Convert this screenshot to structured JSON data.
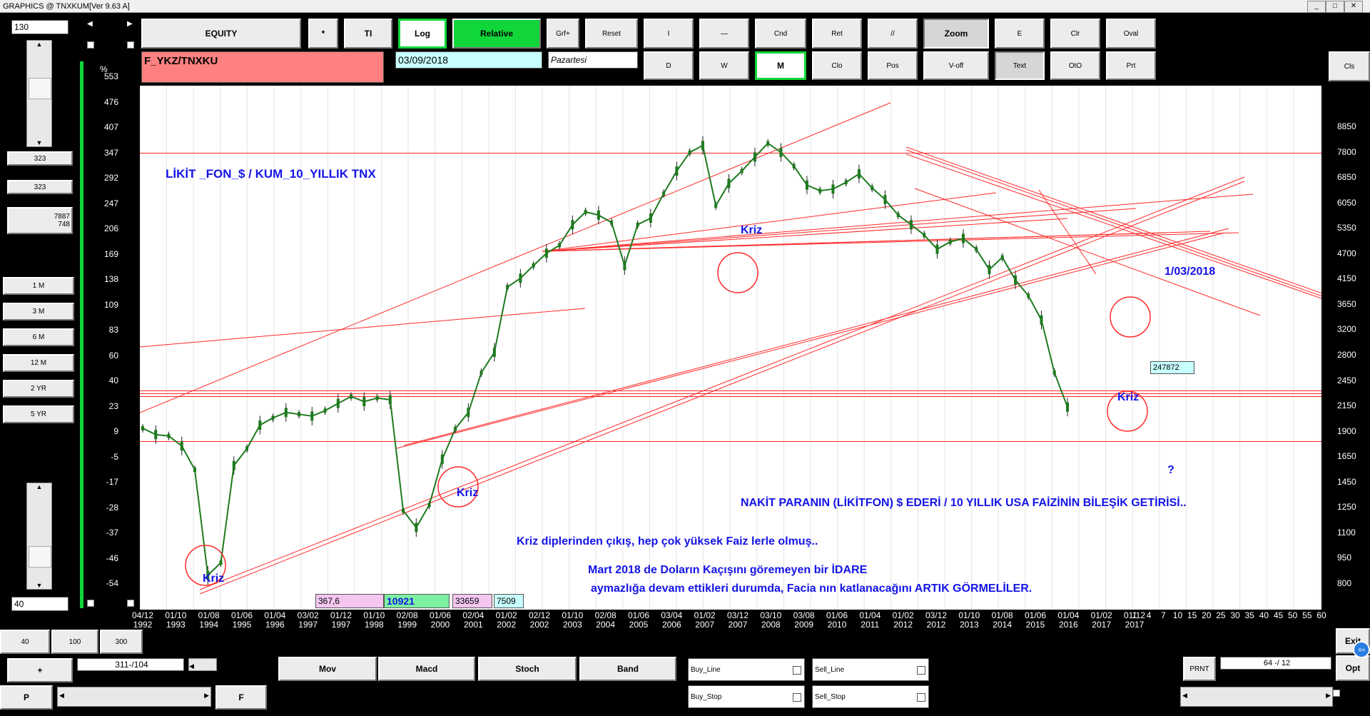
{
  "window": {
    "title": "GRAPHICS  @ TNXKUM[Ver 9.63 A]"
  },
  "toolbar_row1": [
    "EQUITY",
    "*",
    "TI",
    "Log",
    "Relative",
    "Grf+",
    "Reset",
    "I",
    "—",
    "Cnd",
    "Ret",
    "//",
    "Zoom",
    "E",
    "Clr",
    "Oval"
  ],
  "toolbar_row2": [
    "D",
    "W",
    "M",
    "Clo",
    "Pos",
    "V-off",
    "Text",
    "OtO",
    "Prt"
  ],
  "cls_label": "Cls",
  "symbol": "F_YKZ/TNXKU",
  "date": "03/09/2018",
  "day": "Pazartesi",
  "left": {
    "top_value": "130",
    "val1": "323",
    "val2": "323",
    "val3a": "7887",
    "val3b": "748",
    "periods": [
      "1 M",
      "3 M",
      "6 M",
      "12 M",
      "2 YR",
      "5 YR"
    ],
    "bottom_value": "40"
  },
  "chart_data": {
    "type": "line",
    "y_left_label": "%",
    "y_left_ticks": [
      "553",
      "476",
      "407",
      "347",
      "292",
      "247",
      "206",
      "169",
      "138",
      "109",
      "83",
      "60",
      "40",
      "23",
      "9",
      "-5",
      "-17",
      "-28",
      "-37",
      "-46",
      "-54"
    ],
    "y_right_ticks": [
      "8850",
      "7800",
      "6850",
      "6050",
      "5350",
      "4700",
      "4150",
      "3650",
      "3200",
      "2800",
      "2450",
      "2150",
      "1900",
      "1650",
      "1450",
      "1250",
      "1100",
      "950",
      "800"
    ],
    "x_ticks": [
      [
        "04/12",
        "1992"
      ],
      [
        "01/10",
        "1993"
      ],
      [
        "01/08",
        "1994"
      ],
      [
        "01/06",
        "1995"
      ],
      [
        "01/04",
        "1996"
      ],
      [
        "03/02",
        "1997"
      ],
      [
        "01/12",
        "1997"
      ],
      [
        "01/10",
        "1998"
      ],
      [
        "02/08",
        "1999"
      ],
      [
        "01/06",
        "2000"
      ],
      [
        "02/04",
        "2001"
      ],
      [
        "01/02",
        "2002"
      ],
      [
        "02/12",
        "2002"
      ],
      [
        "01/10",
        "2003"
      ],
      [
        "02/08",
        "2004"
      ],
      [
        "01/06",
        "2005"
      ],
      [
        "03/04",
        "2006"
      ],
      [
        "01/02",
        "2007"
      ],
      [
        "03/12",
        "2007"
      ],
      [
        "03/10",
        "2008"
      ],
      [
        "03/08",
        "2009"
      ],
      [
        "01/06",
        "2010"
      ],
      [
        "01/04",
        "2011"
      ],
      [
        "01/02",
        "2012"
      ],
      [
        "03/12",
        "2012"
      ],
      [
        "01/10",
        "2013"
      ],
      [
        "01/08",
        "2014"
      ],
      [
        "01/06",
        "2015"
      ],
      [
        "01/04",
        "2016"
      ],
      [
        "01/02",
        "2017"
      ],
      [
        "01/12",
        "2017"
      ]
    ],
    "x_future_ticks": [
      "1",
      "4",
      "7",
      "10",
      "15",
      "20",
      "25",
      "30",
      "35",
      "40",
      "45",
      "50",
      "55",
      "60"
    ],
    "title": "LİKİT _FON_$  / KUM_10_YILLIK TNX",
    "annotations": {
      "kriz": "Kriz",
      "date_mark": "1/03/2018",
      "question": "?",
      "line1": "NAKİT PARANIN (LİKİTFON) $ EDERİ / 10 YILLIK USA FAİZİNİN BİLEŞİK GETİRİSİ..",
      "line2": "Kriz diplerinden çıkış, hep çok yüksek Faiz lerle olmuş..",
      "line3": "Mart 2018 de Doların Kaçışını göremeyen bir İDARE",
      "line4": "aymazlığa devam ettikleri durumda, Facia nın katlanacağını ARTIK GÖRMELİLER."
    },
    "price_tag": "247872",
    "series": [
      {
        "values": [
          6.3,
          2.8,
          2.0,
          -3.5,
          -15,
          -58,
          -50,
          -13,
          -5,
          8,
          12,
          15,
          14,
          13,
          16,
          20,
          24,
          21,
          23,
          22,
          -32,
          -38,
          -30,
          -10,
          6,
          15,
          40,
          56,
          120,
          130,
          145,
          160,
          170,
          200,
          220,
          215,
          203,
          145,
          200,
          210,
          250,
          290,
          330,
          345,
          230,
          268,
          290,
          320,
          350,
          330,
          300,
          265,
          255,
          258,
          270,
          285,
          260,
          240,
          215,
          200,
          185,
          165,
          175,
          180,
          165,
          140,
          155,
          128,
          110,
          85,
          40,
          18
        ]
      }
    ]
  },
  "bottom_boxes": {
    "b1": "367,6",
    "b2": "10921",
    "b3": "33659",
    "b4": "7509"
  },
  "bottom": {
    "row1": [
      "40",
      "100",
      "300"
    ],
    "plus": "+",
    "counter": "311-/104",
    "p": "P",
    "f": "F",
    "indicators": [
      "Mov",
      "Macd",
      "Stoch",
      "Band"
    ],
    "checks": [
      "Buy_Line",
      "Sell_Line",
      "Buy_Stop",
      "Sell_Stop"
    ],
    "prnt": "PRNT",
    "ratio": "64 -/ 12",
    "exit": "Exit",
    "opt": "Opt"
  },
  "colors": {
    "chart_bg": "#ffffff",
    "candle": "#1e7a1e",
    "trend": "#ff2a2a",
    "accent": "#11d63a",
    "annot": "#1414e6"
  }
}
